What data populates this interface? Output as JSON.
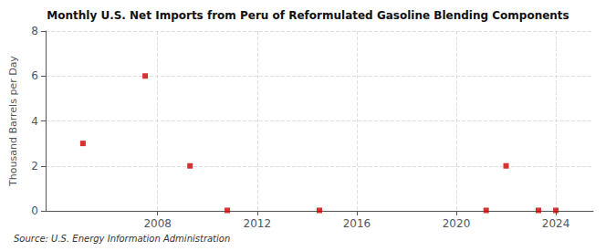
{
  "chart_data": {
    "type": "scatter",
    "title": "Monthly U.S. Net Imports from Peru of Reformulated Gasoline Blending Components",
    "ylabel": "Thousand Barrels per Day",
    "annotations": [
      "Source: U.S. Energy Information Administration"
    ],
    "x": [
      2005.0,
      2007.5,
      2009.3,
      2010.8,
      2014.5,
      2021.2,
      2022.0,
      2023.3,
      2024.0
    ],
    "values": [
      3.0,
      6.0,
      2.0,
      0.02,
      0.02,
      0.02,
      2.0,
      0.02,
      0.02
    ],
    "color": "#cc0000",
    "marker": "square",
    "xlim": [
      2003.5,
      2025.5
    ],
    "ylim": [
      0,
      8
    ],
    "xticks": [
      2008,
      2012,
      2016,
      2020,
      2024
    ],
    "yticks": [
      0,
      2,
      4,
      6,
      8
    ],
    "grid": true
  }
}
